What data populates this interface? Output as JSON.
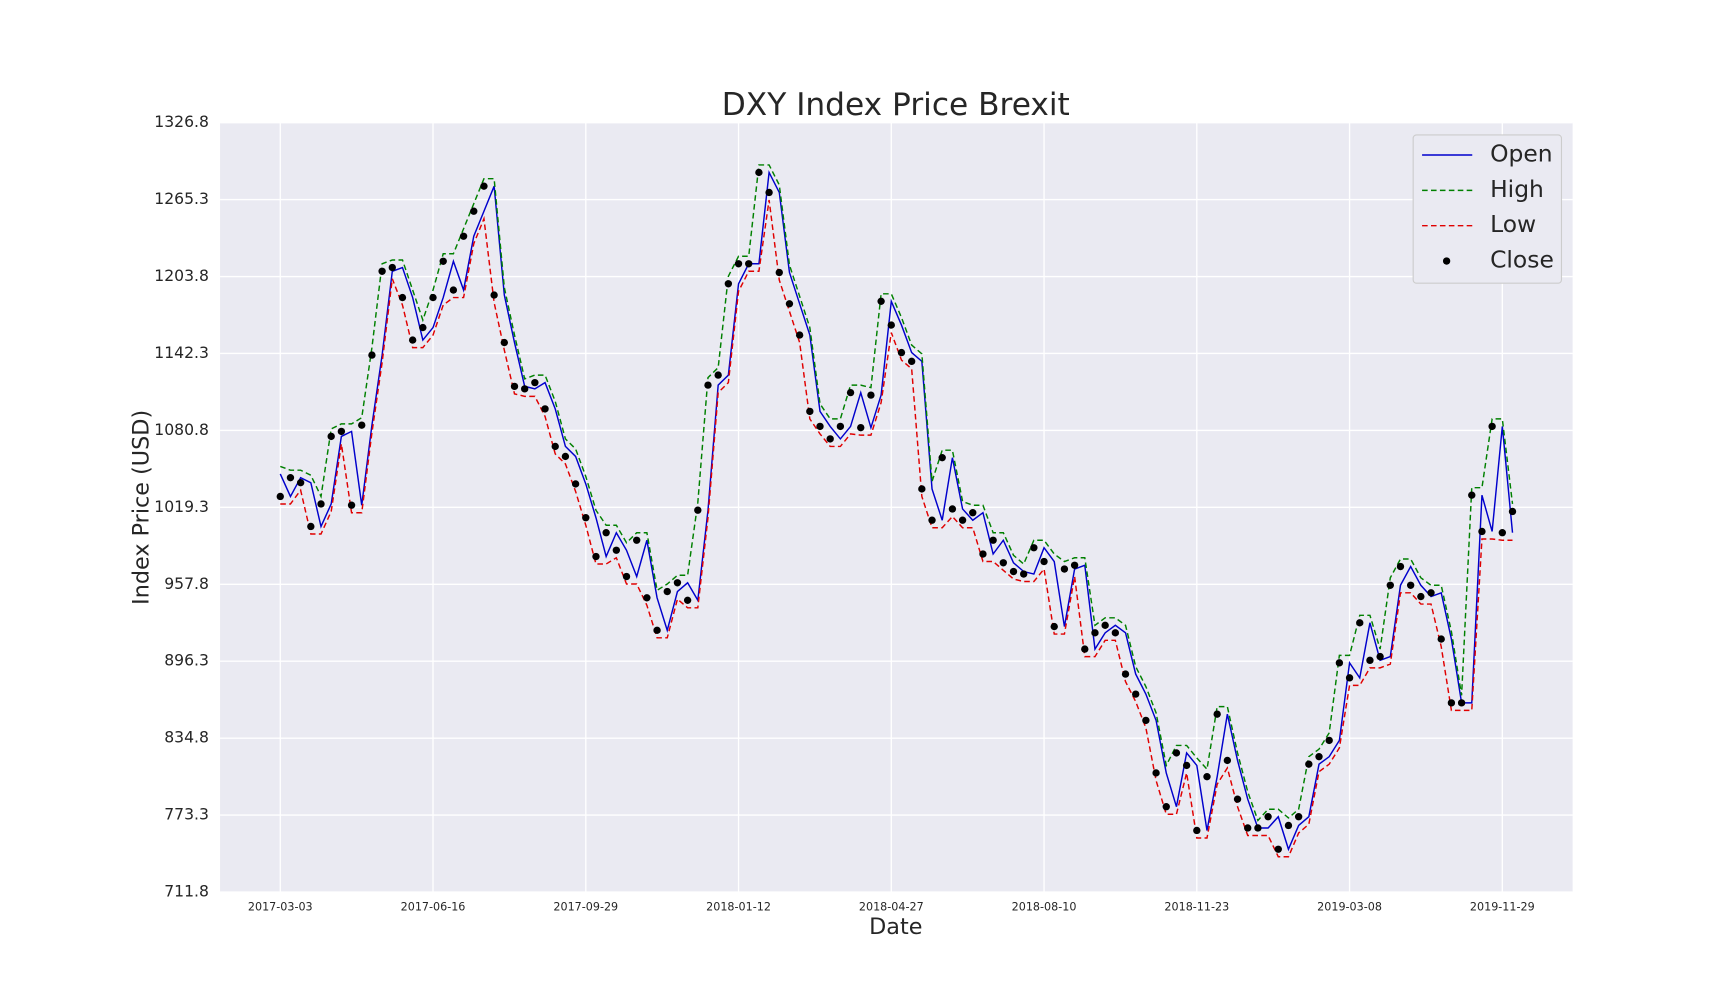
{
  "chart_data": {
    "type": "line",
    "title": "DXY Index Price Brexit",
    "x_label": "Date",
    "y_label": "Index Price (USD)",
    "categories": [
      "2017-03-03",
      null,
      null,
      null,
      null,
      null,
      null,
      null,
      null,
      null,
      null,
      null,
      null,
      null,
      null,
      "2017-06-16",
      null,
      null,
      null,
      null,
      null,
      null,
      null,
      null,
      null,
      null,
      null,
      null,
      null,
      null,
      "2017-09-29",
      null,
      null,
      null,
      null,
      null,
      null,
      null,
      null,
      null,
      null,
      null,
      null,
      null,
      null,
      "2018-01-12",
      null,
      null,
      null,
      null,
      null,
      null,
      null,
      null,
      null,
      null,
      null,
      null,
      null,
      null,
      "2018-04-27",
      null,
      null,
      null,
      null,
      null,
      null,
      null,
      null,
      null,
      null,
      null,
      null,
      null,
      null,
      "2018-08-10",
      null,
      null,
      null,
      null,
      null,
      null,
      null,
      null,
      null,
      null,
      null,
      null,
      null,
      null,
      "2018-11-23",
      null,
      null,
      null,
      null,
      null,
      null,
      null,
      null,
      null,
      null,
      null,
      null,
      null,
      null,
      "2019-03-08",
      null,
      null,
      null,
      null,
      null,
      null,
      null,
      null,
      null,
      null,
      null,
      null,
      null,
      null,
      "2019-11-29",
      null
    ],
    "series": [
      {
        "name": "Open",
        "color": "#0000cc",
        "linestyle": "solid",
        "values": [
          1046,
          1028,
          1043,
          1039,
          1004,
          1022,
          1076,
          1080,
          1021,
          1085,
          1141,
          1208,
          1211,
          1187,
          1153,
          1163,
          1187,
          1216,
          1193,
          1236,
          1256,
          1276,
          1189,
          1151,
          1116,
          1114,
          1119,
          1098,
          1068,
          1060,
          1038,
          1011,
          980,
          999,
          985,
          964,
          993,
          947,
          921,
          952,
          959,
          945,
          1017,
          1117,
          1125,
          1198,
          1214,
          1214,
          1287,
          1271,
          1207,
          1182,
          1157,
          1096,
          1084,
          1074,
          1084,
          1111,
          1083,
          1109,
          1184,
          1165,
          1143,
          1136,
          1034,
          1009,
          1059,
          1018,
          1009,
          1015,
          982,
          993,
          975,
          968,
          966,
          987,
          976,
          924,
          970,
          973,
          906,
          919,
          925,
          919,
          886,
          870,
          849,
          807,
          780,
          823,
          813,
          761,
          804,
          854,
          817,
          786,
          763,
          763,
          772,
          746,
          765,
          772,
          814,
          820,
          833,
          895,
          883,
          927,
          897,
          900,
          957,
          972,
          957,
          948,
          951,
          914,
          863,
          863,
          1029,
          1000,
          1084,
          999
        ]
      },
      {
        "name": "High",
        "color": "#008000",
        "linestyle": "dashed",
        "values": [
          1052,
          1049,
          1049,
          1045,
          1028,
          1082,
          1086,
          1086,
          1091,
          1147,
          1214,
          1217,
          1217,
          1193,
          1169,
          1193,
          1222,
          1222,
          1242,
          1262,
          1282,
          1282,
          1195,
          1157,
          1122,
          1125,
          1125,
          1104,
          1074,
          1066,
          1044,
          1017,
          1005,
          1005,
          991,
          999,
          999,
          953,
          958,
          965,
          965,
          1023,
          1123,
          1131,
          1204,
          1220,
          1220,
          1293,
          1293,
          1277,
          1213,
          1188,
          1163,
          1102,
          1090,
          1090,
          1117,
          1117,
          1115,
          1190,
          1190,
          1171,
          1149,
          1142,
          1040,
          1065,
          1065,
          1024,
          1021,
          1021,
          999,
          999,
          981,
          974,
          993,
          993,
          982,
          976,
          979,
          979,
          925,
          931,
          931,
          925,
          892,
          876,
          855,
          813,
          829,
          829,
          819,
          810,
          860,
          860,
          823,
          792,
          769,
          778,
          778,
          771,
          778,
          820,
          826,
          839,
          901,
          901,
          933,
          933,
          906,
          963,
          978,
          978,
          963,
          957,
          957,
          920,
          869,
          1035,
          1035,
          1090,
          1090,
          1022
        ]
      },
      {
        "name": "Low",
        "color": "#e00000",
        "linestyle": "dashed",
        "values": [
          1022,
          1022,
          1033,
          998,
          998,
          1016,
          1070,
          1015,
          1015,
          1079,
          1135,
          1202,
          1181,
          1147,
          1147,
          1157,
          1181,
          1187,
          1187,
          1230,
          1250,
          1183,
          1145,
          1110,
          1108,
          1108,
          1092,
          1062,
          1054,
          1032,
          1005,
          974,
          974,
          979,
          958,
          958,
          941,
          915,
          915,
          946,
          939,
          939,
          1011,
          1111,
          1119,
          1192,
          1208,
          1208,
          1265,
          1201,
          1176,
          1151,
          1090,
          1078,
          1068,
          1068,
          1078,
          1077,
          1077,
          1103,
          1159,
          1137,
          1130,
          1028,
          1003,
          1003,
          1012,
          1003,
          1003,
          976,
          976,
          969,
          962,
          960,
          960,
          970,
          918,
          918,
          964,
          900,
          900,
          913,
          913,
          880,
          864,
          843,
          801,
          774,
          774,
          807,
          755,
          755,
          798,
          811,
          780,
          757,
          757,
          757,
          740,
          740,
          759,
          766,
          808,
          814,
          827,
          877,
          877,
          891,
          891,
          894,
          951,
          951,
          942,
          942,
          908,
          857,
          857,
          857,
          994,
          994,
          993,
          993
        ]
      },
      {
        "name": "Close",
        "color": "#000000",
        "linestyle": "none",
        "marker": "dot",
        "values": [
          1028,
          1043,
          1039,
          1004,
          1022,
          1076,
          1080,
          1021,
          1085,
          1141,
          1208,
          1211,
          1187,
          1153,
          1163,
          1187,
          1216,
          1193,
          1236,
          1256,
          1276,
          1189,
          1151,
          1116,
          1114,
          1119,
          1098,
          1068,
          1060,
          1038,
          1011,
          980,
          999,
          985,
          964,
          993,
          947,
          921,
          952,
          959,
          945,
          1017,
          1117,
          1125,
          1198,
          1214,
          1214,
          1287,
          1271,
          1207,
          1182,
          1157,
          1096,
          1084,
          1074,
          1084,
          1111,
          1083,
          1109,
          1184,
          1165,
          1143,
          1136,
          1034,
          1009,
          1059,
          1018,
          1009,
          1015,
          982,
          993,
          975,
          968,
          966,
          987,
          976,
          924,
          970,
          973,
          906,
          919,
          925,
          919,
          886,
          870,
          849,
          807,
          780,
          823,
          813,
          761,
          804,
          854,
          817,
          786,
          763,
          763,
          772,
          746,
          765,
          772,
          814,
          820,
          833,
          895,
          883,
          927,
          897,
          900,
          957,
          972,
          957,
          948,
          951,
          914,
          863,
          863,
          1029,
          1000,
          1084,
          999,
          1016
        ]
      }
    ],
    "ylim": [
      711.8,
      1326.8
    ],
    "yticks": [
      711.8,
      773.3,
      834.8,
      896.3,
      957.8,
      1019.3,
      1080.8,
      1142.3,
      1203.8,
      1265.3,
      1326.8
    ],
    "grid": true,
    "legend": "upper right"
  }
}
